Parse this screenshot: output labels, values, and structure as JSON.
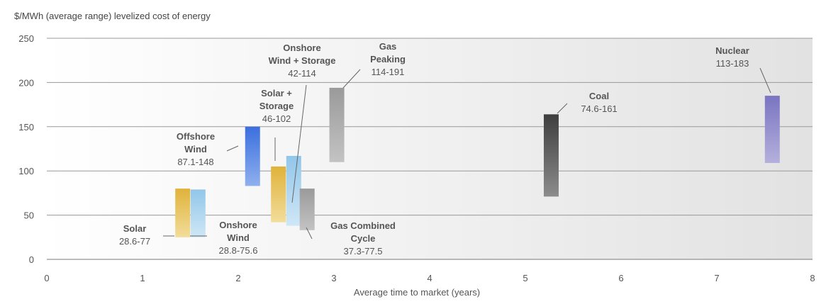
{
  "chart_data": {
    "type": "range_bar",
    "ylabel": "$/MWh (average range) levelized cost of energy",
    "xlabel": "Average time to market (years)",
    "xlim": [
      0,
      8
    ],
    "ylim": [
      0,
      250
    ],
    "xticks": [
      0,
      1,
      2,
      3,
      4,
      5,
      6,
      7,
      8
    ],
    "yticks": [
      0,
      50,
      100,
      150,
      200,
      250
    ],
    "grid": "horizontal",
    "series": [
      {
        "id": "solar",
        "name_lines": [
          "Solar"
        ],
        "range": "28.6-77",
        "x": 1.42,
        "low": 25,
        "high": 80,
        "colors": [
          "#f2dd9a",
          "#e0b23a"
        ]
      },
      {
        "id": "onshore-wind",
        "name_lines": [
          "Onshore",
          "Wind"
        ],
        "range": "28.8-75.6",
        "x": 1.58,
        "low": 25,
        "high": 79,
        "colors": [
          "#cfe7f6",
          "#92c6ea"
        ]
      },
      {
        "id": "offshore-wind",
        "name_lines": [
          "Offshore",
          "Wind"
        ],
        "range": "87.1-148",
        "x": 2.15,
        "low": 83,
        "high": 150,
        "colors": [
          "#8fb0ee",
          "#3b6fde"
        ]
      },
      {
        "id": "solar-storage",
        "name_lines": [
          "Solar +",
          "Storage"
        ],
        "range": "46-102",
        "x": 2.42,
        "low": 42,
        "high": 105,
        "colors": [
          "#f2dd9a",
          "#e0b23a"
        ]
      },
      {
        "id": "onshore-wind-storage",
        "name_lines": [
          "Onshore",
          "Wind + Storage"
        ],
        "range": "42-114",
        "x": 2.58,
        "low": 38,
        "high": 117,
        "colors": [
          "#cfe7f6",
          "#92c6ea"
        ]
      },
      {
        "id": "gas-combined-cycle",
        "name_lines": [
          "Gas Combined",
          "Cycle"
        ],
        "range": "37.3-77.5",
        "x": 2.72,
        "low": 33,
        "high": 80,
        "colors": [
          "#c3c3c3",
          "#9a9a9a"
        ]
      },
      {
        "id": "gas-peaking",
        "name_lines": [
          "Gas",
          "Peaking"
        ],
        "range": "114-191",
        "x": 3.03,
        "low": 110,
        "high": 194,
        "colors": [
          "#c3c3c3",
          "#9a9a9a"
        ]
      },
      {
        "id": "coal",
        "name_lines": [
          "Coal"
        ],
        "range": "74.6-161",
        "x": 5.27,
        "low": 71,
        "high": 164,
        "colors": [
          "#8c8c8c",
          "#3e3e3e"
        ]
      },
      {
        "id": "nuclear",
        "name_lines": [
          "Nuclear"
        ],
        "range": "113-183",
        "x": 7.58,
        "low": 109,
        "high": 185,
        "colors": [
          "#b4b0dc",
          "#7a74c2"
        ]
      }
    ]
  }
}
